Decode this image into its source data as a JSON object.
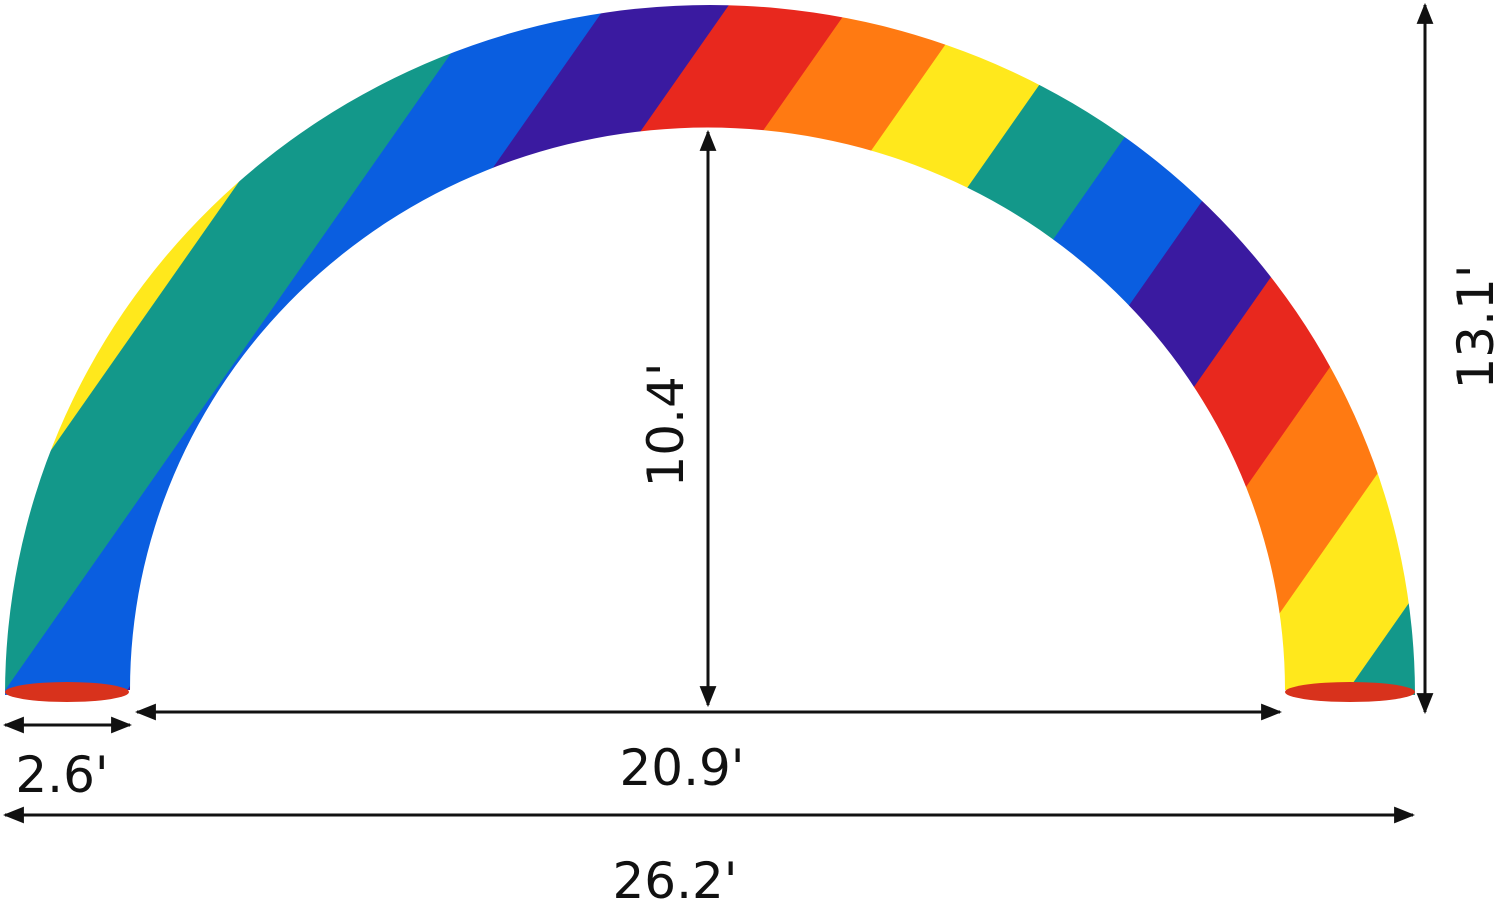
{
  "product": {
    "name": "rainbow-inflatable-arch",
    "stripe_colors": [
      "#e8281e",
      "#ff7a12",
      "#ffe81c",
      "#13988a",
      "#0a5ee0",
      "#3a1aa0"
    ]
  },
  "dimensions": {
    "inner_height": "10.4'",
    "total_height": "13.1'",
    "inner_width": "20.9'",
    "tube_diameter": "2.6'",
    "total_width": "26.2'"
  }
}
